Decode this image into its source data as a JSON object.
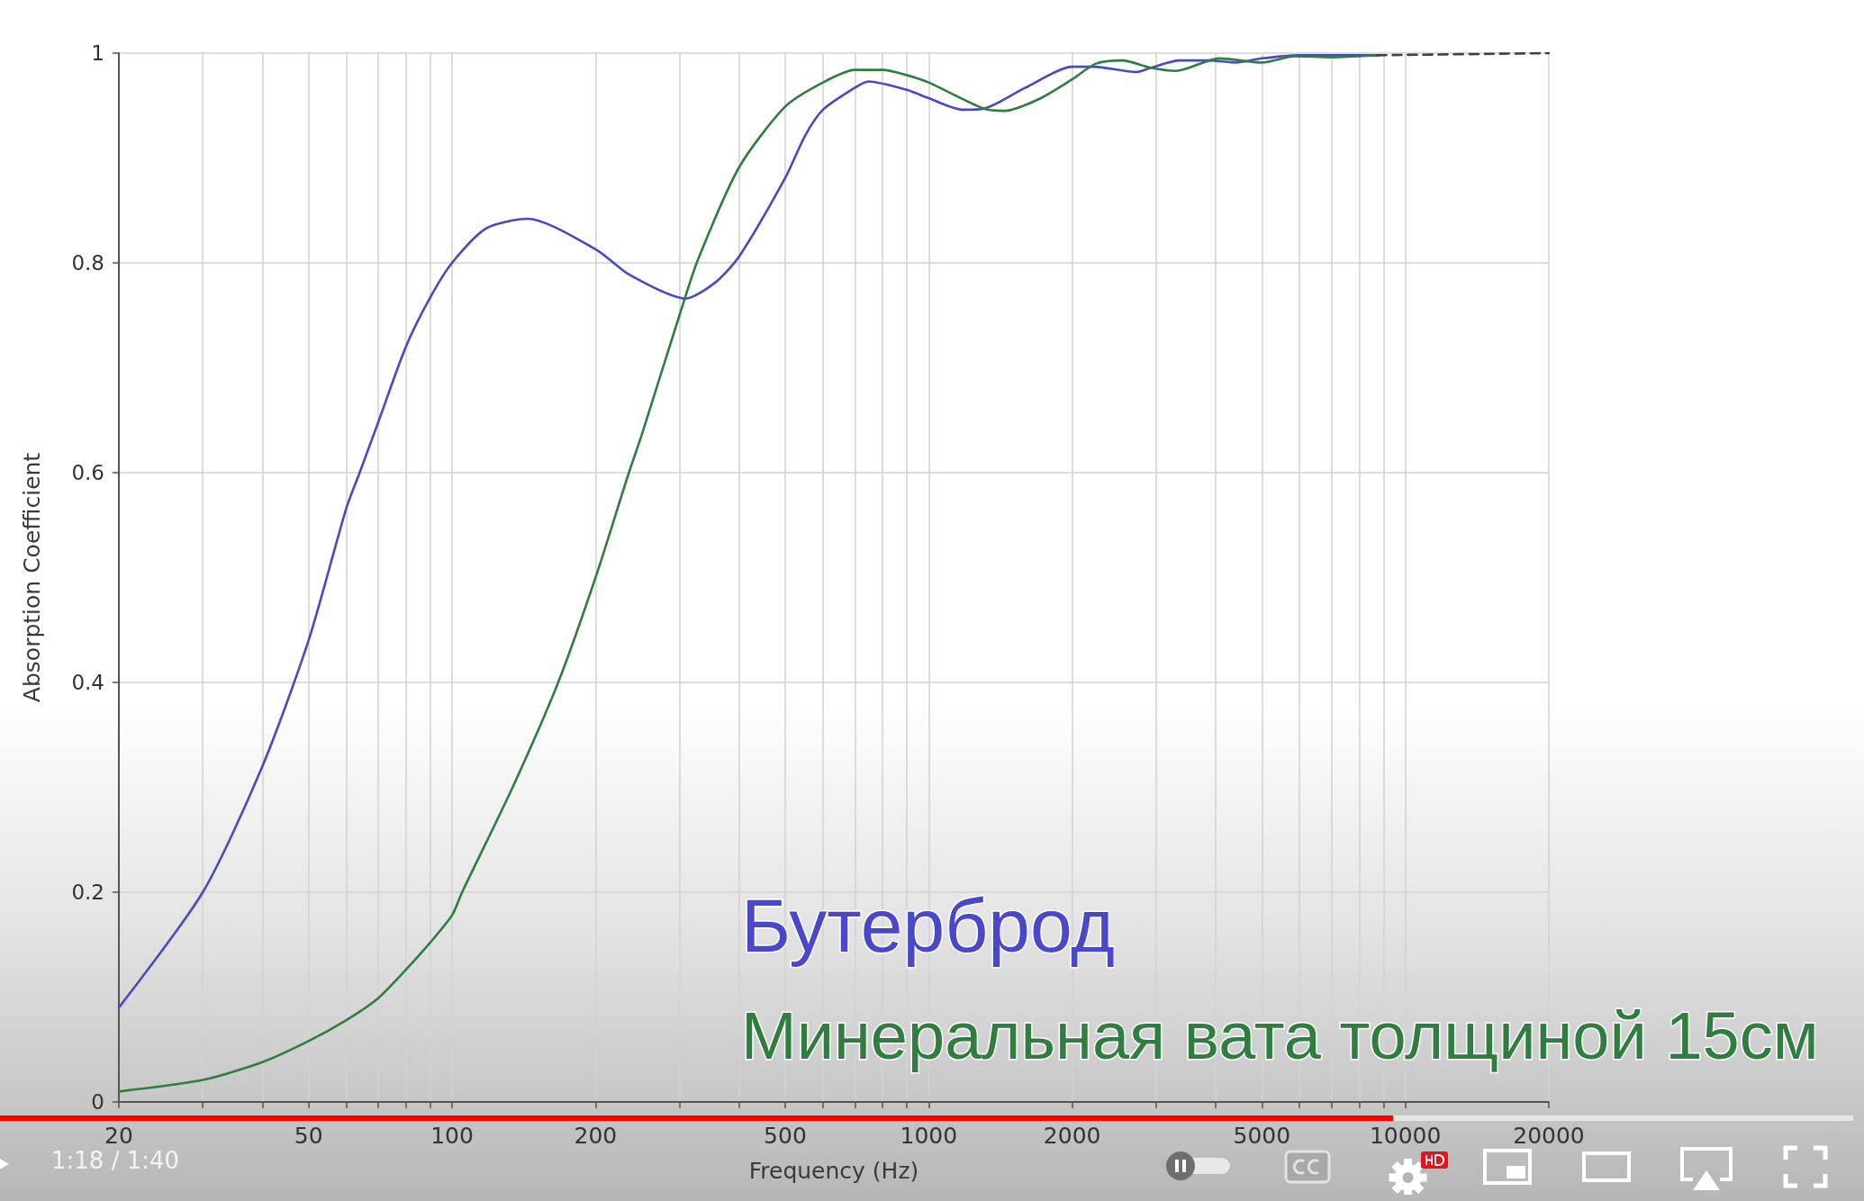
{
  "chart_data": {
    "type": "line",
    "xlabel": "Frequency (Hz)",
    "ylabel": "Absorption Coefficient",
    "log": "x",
    "xlim": [
      20,
      20000
    ],
    "xticks": [
      20,
      {
        "value": 30,
        "label": null
      },
      {
        "value": 40,
        "label": null
      },
      50,
      {
        "value": 60,
        "label": null
      },
      {
        "value": 70,
        "label": null
      },
      {
        "value": 80,
        "label": null
      },
      {
        "value": 90,
        "label": null
      },
      100,
      200,
      {
        "value": 300,
        "label": null
      },
      {
        "value": 400,
        "label": null
      },
      500,
      {
        "value": 600,
        "label": null
      },
      {
        "value": 700,
        "label": null
      },
      {
        "value": 800,
        "label": null
      },
      {
        "value": 900,
        "label": null
      },
      1000,
      2000,
      {
        "value": 3000,
        "label": null
      },
      {
        "value": 4000,
        "label": null
      },
      5000,
      {
        "value": 6000,
        "label": null
      },
      {
        "value": 7000,
        "label": null
      },
      {
        "value": 8000,
        "label": null
      },
      {
        "value": 9000,
        "label": null
      },
      10000,
      20000
    ],
    "ylim": [
      0,
      1
    ],
    "yticks": [
      0,
      0.2,
      0.4,
      0.6,
      0.8,
      1
    ],
    "grid": true,
    "legend": "bottom right",
    "marker": "none",
    "line_style": "solid",
    "annotations": [
      "1:18 / 1:40"
    ],
    "series": [
      {
        "name": "Бутерброд",
        "color": "#4b47c9",
        "x": [
          20,
          30,
          40,
          50,
          60,
          64,
          70,
          80,
          90,
          100,
          118,
          144,
          200,
          237,
          309,
          356,
          400,
          500,
          550,
          600,
          700,
          747,
          900,
          1000,
          1181,
          1306,
          1595,
          2000,
          2223,
          2723,
          2925,
          3355,
          3878,
          4413,
          5000,
          6000,
          8740
        ],
        "values": [
          0.09,
          0.2,
          0.32,
          0.44,
          0.566,
          0.6,
          0.648,
          0.72,
          0.767,
          0.8,
          0.833,
          0.842,
          0.813,
          0.788,
          0.766,
          0.781,
          0.806,
          0.881,
          0.921,
          0.946,
          0.967,
          0.973,
          0.965,
          0.957,
          0.946,
          0.947,
          0.967,
          0.987,
          0.987,
          0.982,
          0.986,
          0.993,
          0.993,
          0.991,
          0.995,
          0.998,
          0.998
        ]
      },
      {
        "name": "Минеральная вата толщиной 15см",
        "color": "#2f7d3f",
        "x": [
          20,
          30,
          40,
          50,
          60,
          70,
          80,
          90,
          100,
          105,
          134,
          167,
          200,
          235,
          250,
          300,
          328,
          400,
          500,
          600,
          700,
          800,
          900,
          1000,
          1306,
          1443,
          1700,
          2000,
          2244,
          2552,
          2925,
          3302,
          4070,
          5000,
          5870,
          7000,
          8740
        ],
        "values": [
          0.01,
          0.021,
          0.038,
          0.058,
          0.078,
          0.099,
          0.126,
          0.152,
          0.178,
          0.2,
          0.3,
          0.4,
          0.5,
          0.6,
          0.636,
          0.75,
          0.803,
          0.891,
          0.949,
          0.972,
          0.984,
          0.984,
          0.979,
          0.972,
          0.947,
          0.945,
          0.956,
          0.975,
          0.99,
          0.993,
          0.986,
          0.983,
          0.995,
          0.991,
          0.997,
          0.996,
          0.998
        ]
      },
      {
        "color": "#404040",
        "line_style": "dashed",
        "x": [
          8740,
          20000
        ],
        "values": [
          0.998,
          1
        ]
      }
    ]
  }
}
